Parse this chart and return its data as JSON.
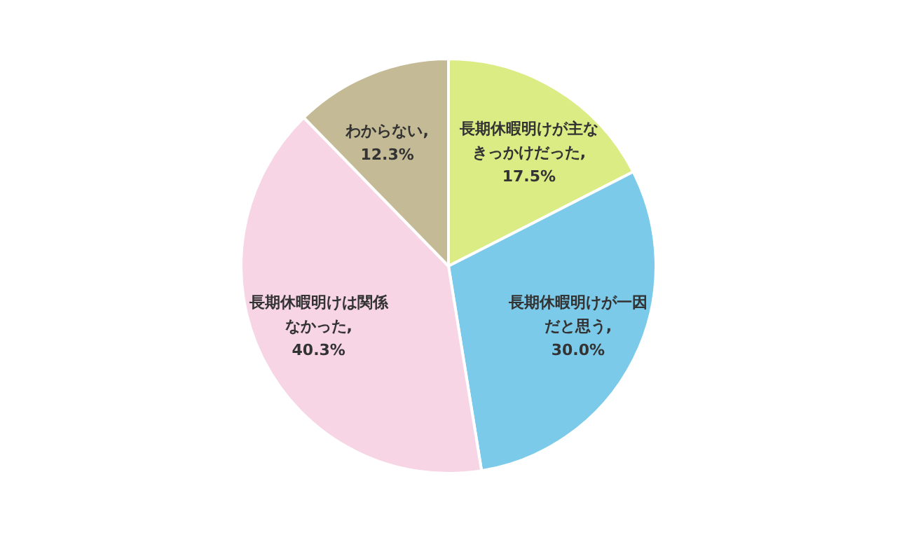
{
  "chart_data": {
    "type": "pie",
    "categories": [
      "長期休暇明けが主なきっかけだった",
      "長期休暇明けが一因だと思う",
      "長期休暇明けは関係なかった",
      "わからない"
    ],
    "values": [
      17.5,
      30.0,
      40.3,
      12.3
    ],
    "value_labels": [
      ",17.5%",
      ",30.0%",
      ",40.3%",
      ",12.3%"
    ],
    "colors": [
      "#dcec84",
      "#7ccaea",
      "#f7d5e5",
      "#c4bb96"
    ]
  }
}
